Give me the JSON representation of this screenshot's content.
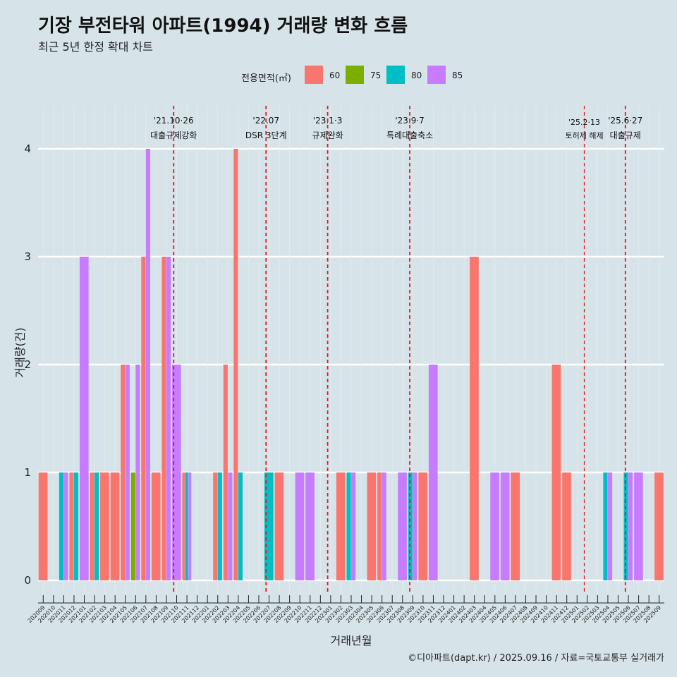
{
  "header": {
    "title": "기장 부전타워 아파트(1994) 거래량 변화 흐름",
    "subtitle": "최근 5년 한정 확대 차트"
  },
  "caption": "©디아파트(dapt.kr) / 2025.09.16 / 자료=국토교통부 실거래가",
  "legend": {
    "title": "전용면적(㎡)",
    "items": [
      {
        "label": "60",
        "color": "#F8766D"
      },
      {
        "label": "75",
        "color": "#7CAE00"
      },
      {
        "label": "80",
        "color": "#00BFC4"
      },
      {
        "label": "85",
        "color": "#C77CFF"
      }
    ]
  },
  "chart_data": {
    "type": "bar",
    "xlabel": "거래년월",
    "ylabel": "거래량(건)",
    "ylim": [
      0,
      4
    ],
    "yticks": [
      0,
      1,
      2,
      3,
      4
    ],
    "grid": true,
    "legend_position": "top",
    "categories": [
      "202009",
      "202010",
      "202011",
      "202012",
      "202101",
      "202102",
      "202103",
      "202104",
      "202105",
      "202106",
      "202107",
      "202108",
      "202109",
      "202110",
      "202111",
      "202112",
      "202201",
      "202202",
      "202203",
      "202204",
      "202205",
      "202206",
      "202207",
      "202208",
      "202209",
      "202210",
      "202211",
      "202212",
      "202301",
      "202302",
      "202303",
      "202304",
      "202305",
      "202306",
      "202307",
      "202308",
      "202309",
      "202310",
      "202311",
      "202312",
      "202401",
      "202402",
      "202403",
      "202404",
      "202405",
      "202406",
      "202407",
      "202408",
      "202409",
      "202410",
      "202411",
      "202412",
      "202501",
      "202502",
      "202503",
      "202504",
      "202505",
      "202506",
      "202507",
      "202508",
      "202509"
    ],
    "series": [
      {
        "name": "60",
        "color": "#F8766D",
        "values": {
          "202009": 1,
          "202012": 1,
          "202102": 1,
          "202103": 1,
          "202104": 1,
          "202105": 2,
          "202107": 3,
          "202108": 1,
          "202109": 3,
          "202111": 1,
          "202202": 1,
          "202203": 2,
          "202204": 4,
          "202208": 1,
          "202302": 1,
          "202305": 1,
          "202306": 1,
          "202310": 1,
          "202403": 3,
          "202407": 1,
          "202411": 2,
          "202412": 1,
          "202509": 1
        }
      },
      {
        "name": "75",
        "color": "#7CAE00",
        "values": {
          "202106": 1
        }
      },
      {
        "name": "80",
        "color": "#00BFC4",
        "values": {
          "202011": 1,
          "202012": 1,
          "202102": 1,
          "202111": 1,
          "202202": 1,
          "202204": 1,
          "202207": 1,
          "202303": 1,
          "202309": 1,
          "202504": 1,
          "202506": 1
        }
      },
      {
        "name": "85",
        "color": "#C77CFF",
        "values": {
          "202011": 1,
          "202101": 3,
          "202105": 2,
          "202106": 2,
          "202107": 4,
          "202109": 3,
          "202110": 2,
          "202111": 1,
          "202203": 1,
          "202210": 1,
          "202211": 1,
          "202303": 1,
          "202306": 1,
          "202308": 1,
          "202309": 1,
          "202311": 2,
          "202405": 1,
          "202406": 1,
          "202504": 1,
          "202506": 1,
          "202507": 1
        }
      }
    ],
    "annotations": [
      {
        "at": "202110",
        "line1": "'21.10·26",
        "line2": "대출규제강화",
        "small": false
      },
      {
        "at": "202207",
        "line1": "'22.07",
        "line2": "DSR 3단계",
        "small": false
      },
      {
        "at": "202301",
        "line1": "'23.1·3",
        "line2": "규제완화",
        "small": false
      },
      {
        "at": "202309",
        "line1": "'23.9·7",
        "line2": "특례대출축소",
        "small": false
      },
      {
        "at": "202502",
        "line1": "'25.2·13",
        "line2": "토허제 해제",
        "small": true
      },
      {
        "at": "202506",
        "line1": "'25.6·27",
        "line2": "대출규제",
        "small": false
      }
    ]
  }
}
